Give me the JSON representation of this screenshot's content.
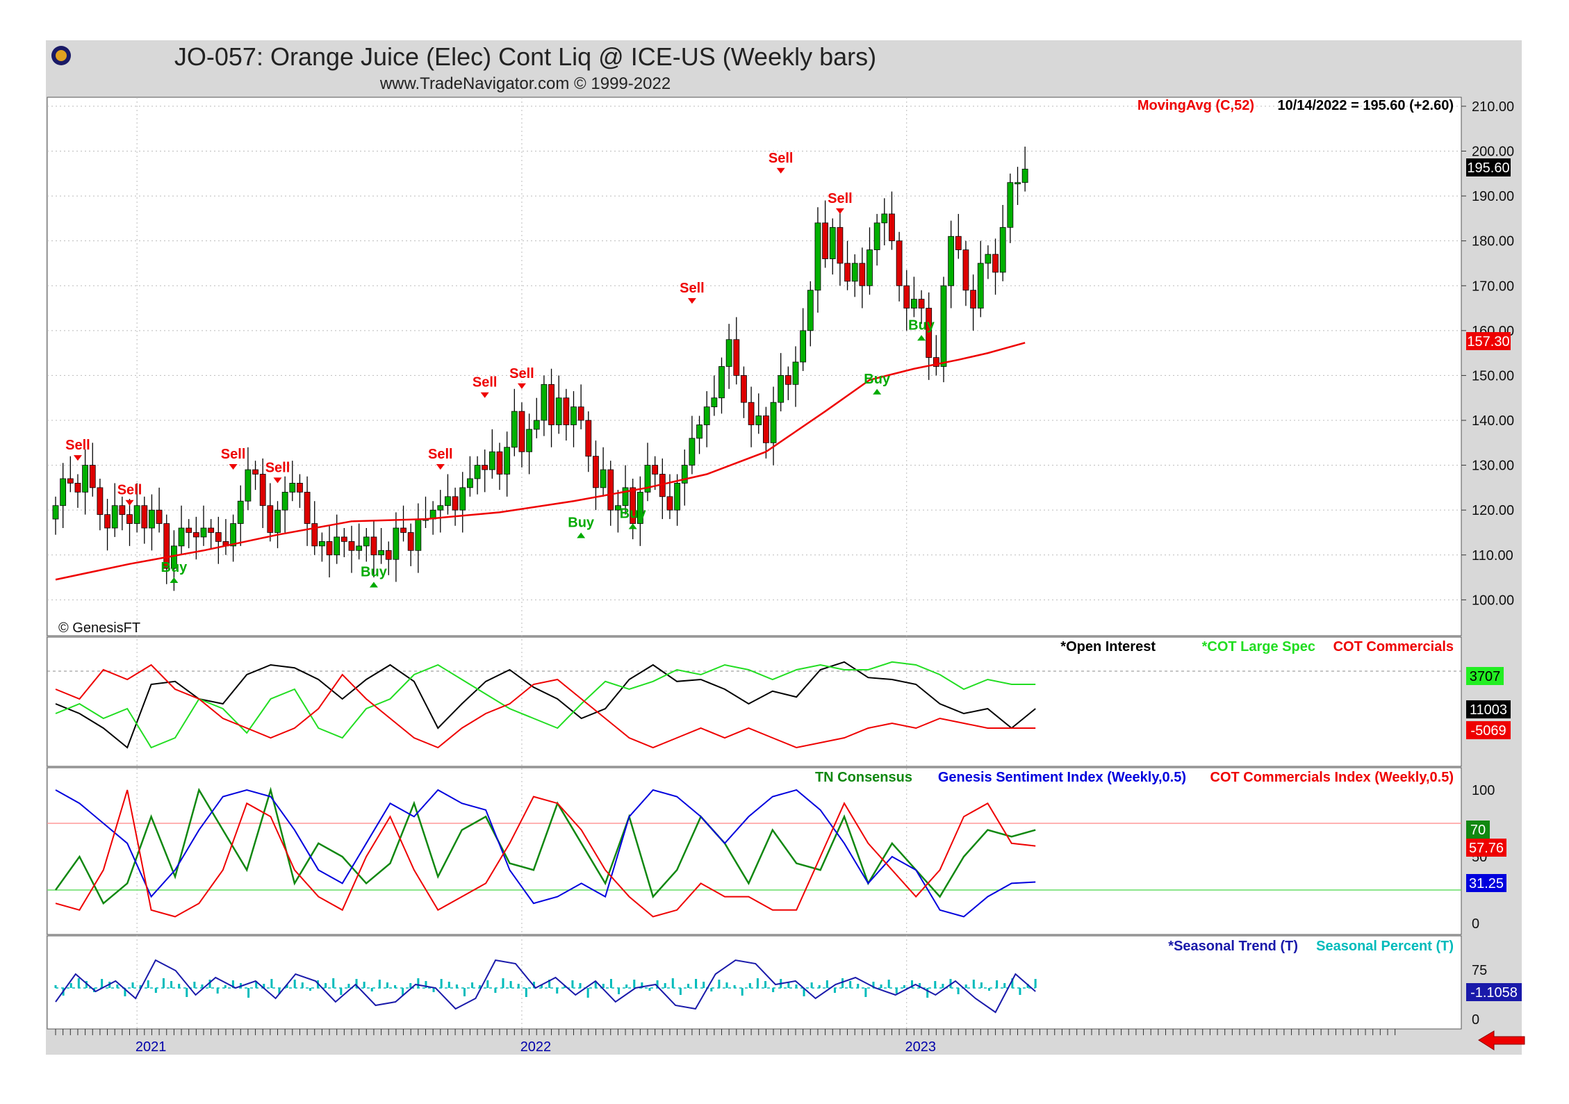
{
  "header": {
    "title": "JO-057:  Orange Juice (Elec) Cont Liq @ ICE-US  (Weekly bars)",
    "subtitle": "www.TradeNavigator.com © 1999-2022",
    "copyright_genesis": "© GenesisFT"
  },
  "colors": {
    "background": "#d9d9d9",
    "up": "#00b000",
    "down": "#dd0000",
    "ma": "#ee0000",
    "open_interest": "#000000",
    "large_spec": "#22dd22",
    "commercials": "#ee0000",
    "consensus": "#118811",
    "sentiment": "#0000dd",
    "seasonal_trend": "#1a1aaa",
    "seasonal_percent": "#00bbbb"
  },
  "chart_data": [
    {
      "id": "price",
      "type": "candlestick",
      "legend_ma": "MovingAvg (C,52)",
      "legend_value": "10/14/2022 = 195.60 (+2.60)",
      "ylim": [
        92,
        212
      ],
      "yticks": [
        "210.00",
        "200.00",
        "190.00",
        "180.00",
        "170.00",
        "160.00",
        "150.00",
        "140.00",
        "130.00",
        "120.00",
        "110.00",
        "100.00"
      ],
      "ytick_values": [
        210,
        200,
        190,
        180,
        170,
        160,
        150,
        140,
        130,
        120,
        110,
        100
      ],
      "last_price_label": "195.60",
      "last_ma_label": "157.30",
      "x_start_week": 0,
      "closes": [
        121,
        127,
        126,
        124,
        130,
        125,
        119,
        116,
        121,
        119,
        117,
        121,
        116,
        120,
        117,
        107,
        112,
        116,
        115,
        114,
        116,
        115,
        113,
        112,
        117,
        122,
        129,
        128,
        121,
        115,
        120,
        124,
        126,
        124,
        117,
        112,
        113,
        110,
        114,
        113,
        111,
        112,
        114,
        110,
        111,
        109,
        116,
        115,
        111,
        118,
        118,
        120,
        121,
        123,
        120,
        125,
        127,
        130,
        129,
        133,
        128,
        134,
        142,
        133,
        138,
        140,
        148,
        139,
        145,
        139,
        143,
        140,
        132,
        125,
        129,
        120,
        121,
        125,
        117,
        124,
        130,
        128,
        123,
        120,
        126,
        130,
        136,
        139,
        143,
        145,
        152,
        158,
        150,
        144,
        139,
        141,
        135,
        144,
        150,
        148,
        153,
        160,
        169,
        184,
        176,
        183,
        175,
        171,
        175,
        170,
        178,
        184,
        186,
        180,
        170,
        165,
        167,
        165,
        154,
        152,
        170,
        181,
        178,
        169,
        165,
        175,
        177,
        173,
        183,
        193,
        193,
        196
      ],
      "ma_points": [
        [
          0,
          104.5
        ],
        [
          10,
          108
        ],
        [
          20,
          111
        ],
        [
          30,
          114.5
        ],
        [
          40,
          117.5
        ],
        [
          50,
          118
        ],
        [
          60,
          119.5
        ],
        [
          70,
          122
        ],
        [
          80,
          125
        ],
        [
          88,
          128
        ],
        [
          96,
          133
        ],
        [
          104,
          142
        ],
        [
          110,
          149
        ],
        [
          116,
          151.5
        ],
        [
          122,
          153.5
        ],
        [
          126,
          155
        ],
        [
          131,
          157.3
        ]
      ],
      "signals": [
        {
          "type": "sell",
          "i": 3,
          "label": "Sell",
          "price": 131
        },
        {
          "type": "sell",
          "i": 10,
          "label": "Sell",
          "price": 121
        },
        {
          "type": "buy",
          "i": 16,
          "label": "Buy",
          "price": 105
        },
        {
          "type": "sell",
          "i": 24,
          "label": "Sell",
          "price": 129
        },
        {
          "type": "sell",
          "i": 30,
          "label": "Sell",
          "price": 126
        },
        {
          "type": "buy",
          "i": 43,
          "label": "Buy",
          "price": 104
        },
        {
          "type": "sell",
          "i": 52,
          "label": "Sell",
          "price": 129
        },
        {
          "type": "sell",
          "i": 58,
          "label": "Sell",
          "price": 145
        },
        {
          "type": "sell",
          "i": 63,
          "label": "Sell",
          "price": 147
        },
        {
          "type": "buy",
          "i": 71,
          "label": "Buy",
          "price": 115
        },
        {
          "type": "buy",
          "i": 78,
          "label": "Buy",
          "price": 117
        },
        {
          "type": "sell",
          "i": 86,
          "label": "Sell",
          "price": 166
        },
        {
          "type": "sell",
          "i": 98,
          "label": "Sell",
          "price": 195
        },
        {
          "type": "sell",
          "i": 106,
          "label": "Sell",
          "price": 186
        },
        {
          "type": "buy",
          "i": 111,
          "label": "Buy",
          "price": 147
        },
        {
          "type": "buy",
          "i": 117,
          "label": "Buy",
          "price": 159
        }
      ]
    },
    {
      "id": "cot",
      "type": "line",
      "legend": [
        "*Open Interest",
        "*COT Large Spec",
        "COT Commercials"
      ],
      "value_labels": {
        "large_spec": "3707",
        "open_interest": "11003",
        "commercials": "-5069"
      },
      "open_interest": [
        0.55,
        0.45,
        0.3,
        0.1,
        0.75,
        0.78,
        0.6,
        0.55,
        0.85,
        0.95,
        0.92,
        0.8,
        0.6,
        0.8,
        0.95,
        0.78,
        0.3,
        0.55,
        0.78,
        0.9,
        0.72,
        0.6,
        0.4,
        0.5,
        0.8,
        0.95,
        0.78,
        0.8,
        0.7,
        0.55,
        0.68,
        0.62,
        0.9,
        0.98,
        0.82,
        0.8,
        0.75,
        0.55,
        0.45,
        0.5,
        0.3,
        0.5
      ],
      "large_spec": [
        0.45,
        0.55,
        0.4,
        0.5,
        0.1,
        0.2,
        0.6,
        0.5,
        0.25,
        0.6,
        0.7,
        0.3,
        0.2,
        0.5,
        0.6,
        0.85,
        0.95,
        0.8,
        0.65,
        0.5,
        0.4,
        0.3,
        0.55,
        0.78,
        0.7,
        0.78,
        0.9,
        0.85,
        0.95,
        0.9,
        0.8,
        0.9,
        0.95,
        0.9,
        0.9,
        0.98,
        0.95,
        0.85,
        0.7,
        0.8,
        0.75,
        0.75
      ],
      "commercials": [
        0.7,
        0.6,
        0.9,
        0.8,
        0.95,
        0.7,
        0.6,
        0.4,
        0.3,
        0.2,
        0.3,
        0.5,
        0.85,
        0.6,
        0.4,
        0.2,
        0.1,
        0.3,
        0.45,
        0.55,
        0.75,
        0.8,
        0.6,
        0.4,
        0.2,
        0.1,
        0.2,
        0.3,
        0.2,
        0.3,
        0.2,
        0.1,
        0.15,
        0.2,
        0.3,
        0.35,
        0.3,
        0.4,
        0.35,
        0.3,
        0.3,
        0.3
      ]
    },
    {
      "id": "index",
      "type": "line",
      "legend": [
        "TN Consensus",
        "Genesis Sentiment Index (Weekly,0.5)",
        "COT Commercials Index (Weekly,0.5)"
      ],
      "ylim": [
        0,
        100
      ],
      "yticks": [
        "100",
        "50",
        "0"
      ],
      "ytick_values": [
        100,
        50,
        0
      ],
      "hlines": [
        75,
        25
      ],
      "value_labels": {
        "consensus": "70",
        "commercials": "57.76",
        "sentiment": "31.25"
      },
      "consensus": [
        25,
        50,
        15,
        30,
        80,
        35,
        100,
        70,
        40,
        100,
        30,
        60,
        50,
        30,
        45,
        90,
        35,
        70,
        80,
        45,
        40,
        90,
        60,
        30,
        80,
        20,
        40,
        80,
        60,
        30,
        70,
        45,
        40,
        80,
        30,
        60,
        40,
        20,
        50,
        70,
        65,
        70
      ],
      "sentiment": [
        100,
        90,
        75,
        60,
        20,
        40,
        70,
        95,
        100,
        95,
        70,
        40,
        30,
        60,
        90,
        80,
        100,
        90,
        85,
        40,
        15,
        20,
        30,
        20,
        80,
        100,
        95,
        80,
        60,
        80,
        95,
        100,
        85,
        60,
        30,
        50,
        40,
        10,
        5,
        20,
        30,
        31
      ],
      "commercials": [
        15,
        10,
        40,
        100,
        10,
        5,
        15,
        40,
        90,
        80,
        40,
        20,
        10,
        50,
        80,
        40,
        10,
        20,
        30,
        60,
        95,
        90,
        70,
        40,
        20,
        5,
        10,
        30,
        20,
        20,
        10,
        10,
        50,
        90,
        60,
        40,
        20,
        40,
        80,
        90,
        60,
        58
      ]
    },
    {
      "id": "seasonal",
      "type": "line",
      "legend": [
        "*Seasonal Trend (T)",
        "Seasonal Percent (T)"
      ],
      "yticks": [
        "75",
        "0"
      ],
      "ytick_values": [
        75,
        0
      ],
      "value_label": "-1.1058",
      "seasonal_trend": [
        0.3,
        0.7,
        0.45,
        0.6,
        0.35,
        0.9,
        0.75,
        0.4,
        0.65,
        0.5,
        0.6,
        0.35,
        0.7,
        0.6,
        0.3,
        0.55,
        0.25,
        0.3,
        0.55,
        0.5,
        0.2,
        0.35,
        0.9,
        0.85,
        0.5,
        0.65,
        0.4,
        0.6,
        0.3,
        0.5,
        0.55,
        0.25,
        0.2,
        0.7,
        0.9,
        0.85,
        0.55,
        0.6,
        0.35,
        0.55,
        0.65,
        0.5,
        0.4,
        0.55,
        0.4,
        0.6,
        0.35,
        0.15,
        0.7,
        0.45
      ]
    }
  ],
  "x_axis": {
    "labels": [
      {
        "text": "2021",
        "week": 11
      },
      {
        "text": "2022",
        "week": 63
      },
      {
        "text": "2023",
        "week": 115
      }
    ]
  }
}
